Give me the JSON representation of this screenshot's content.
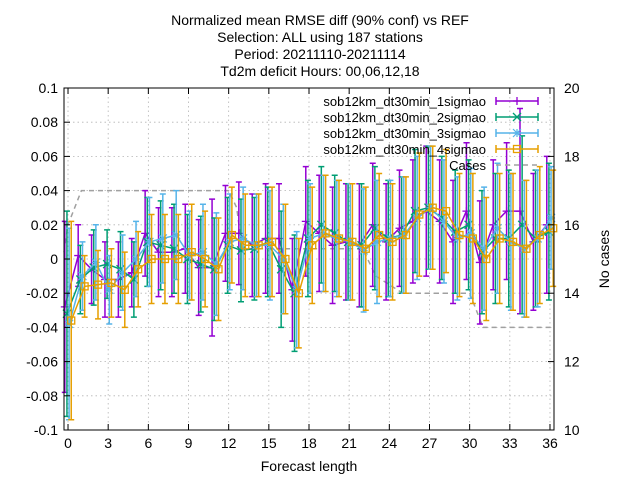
{
  "chart_data": {
    "type": "line",
    "title_lines": [
      "Normalized mean RMSE diff (90% conf) vs REF",
      "Selection: ALL using   187 stations",
      "Period: 20211110-20211114",
      "Td2m deficit   Hours: 00,06,12,18"
    ],
    "xlabel": "Forecast length",
    "ylabel_right": "No cases",
    "xlim": [
      -0.3,
      36.3
    ],
    "ylim": [
      -0.1,
      0.1
    ],
    "y2lim": [
      10,
      20
    ],
    "x_ticks": [
      "0",
      "3",
      "6",
      "9",
      "12",
      "15",
      "18",
      "21",
      "24",
      "27",
      "30",
      "33",
      "36"
    ],
    "y_ticks": [
      "-0.1",
      "-0.08",
      "-0.06",
      "-0.04",
      "-0.02",
      "0",
      "0.02",
      "0.04",
      "0.06",
      "0.08",
      "0.1"
    ],
    "y2_ticks": [
      "10",
      "12",
      "14",
      "16",
      "18",
      "20"
    ],
    "grid": true,
    "legend_position": "top-right",
    "x": [
      0,
      1,
      2,
      3,
      4,
      5,
      6,
      7,
      8,
      9,
      10,
      11,
      12,
      13,
      14,
      15,
      16,
      17,
      18,
      19,
      20,
      21,
      22,
      23,
      24,
      25,
      26,
      27,
      28,
      29,
      30,
      31,
      32,
      33,
      34,
      35,
      36
    ],
    "series": [
      {
        "name": "sob12km_dt30min_1sigmao",
        "color": "#9400d3",
        "marker": "plus",
        "y": [
          -0.028,
          0.002,
          -0.006,
          -0.012,
          -0.012,
          -0.008,
          0.015,
          0.004,
          0.004,
          0.006,
          -0.005,
          -0.005,
          0.015,
          0.015,
          0.008,
          0.012,
          0.012,
          -0.018,
          0.022,
          0.015,
          0.008,
          0.01,
          0.008,
          0.02,
          0.01,
          0.018,
          0.022,
          0.028,
          0.022,
          0.01,
          0.028,
          -0.002,
          0.02,
          0.028,
          0.028,
          0.01,
          0.02
        ],
        "err": [
          0.05,
          0.018,
          0.02,
          0.022,
          0.022,
          0.02,
          0.025,
          0.026,
          0.026,
          0.026,
          0.028,
          0.04,
          0.028,
          0.03,
          0.03,
          0.032,
          0.032,
          0.03,
          0.032,
          0.034,
          0.034,
          0.034,
          0.036,
          0.036,
          0.034,
          0.034,
          0.036,
          0.038,
          0.036,
          0.036,
          0.04,
          0.036,
          0.038,
          0.04,
          0.06,
          0.04,
          0.04
        ]
      },
      {
        "name": "sob12km_dt30min_2sigmao",
        "color": "#009e73",
        "marker": "cross",
        "y": [
          -0.032,
          -0.012,
          -0.005,
          -0.003,
          -0.006,
          -0.012,
          0.01,
          0.008,
          0.006,
          0.0,
          -0.003,
          -0.006,
          0.008,
          0.005,
          0.006,
          0.01,
          -0.006,
          -0.02,
          0.012,
          0.02,
          0.015,
          0.01,
          0.008,
          0.018,
          0.012,
          0.014,
          0.028,
          0.03,
          0.024,
          0.016,
          0.02,
          0.004,
          0.012,
          0.012,
          0.02,
          0.012,
          0.016
        ],
        "err": [
          0.06,
          0.02,
          0.022,
          0.02,
          0.022,
          0.022,
          0.026,
          0.026,
          0.026,
          0.026,
          0.028,
          0.03,
          0.028,
          0.03,
          0.03,
          0.032,
          0.034,
          0.034,
          0.034,
          0.034,
          0.034,
          0.034,
          0.036,
          0.036,
          0.034,
          0.034,
          0.036,
          0.036,
          0.036,
          0.036,
          0.038,
          0.036,
          0.038,
          0.04,
          0.052,
          0.04,
          0.04
        ]
      },
      {
        "name": "sob12km_dt30min_3sigmao",
        "color": "#56b4e9",
        "marker": "star",
        "y": [
          -0.038,
          -0.01,
          -0.002,
          -0.018,
          -0.008,
          0.0,
          0.01,
          0.012,
          0.014,
          0.002,
          0.004,
          -0.003,
          0.01,
          0.012,
          0.008,
          0.008,
          0.0,
          -0.018,
          0.012,
          0.015,
          0.012,
          0.01,
          0.005,
          0.01,
          0.012,
          0.014,
          0.024,
          0.03,
          0.022,
          0.012,
          0.015,
          0.006,
          0.018,
          0.01,
          0.006,
          0.012,
          0.024
        ],
        "err": [
          0.056,
          0.02,
          0.022,
          0.02,
          0.022,
          0.022,
          0.026,
          0.026,
          0.026,
          0.026,
          0.028,
          0.03,
          0.028,
          0.03,
          0.03,
          0.032,
          0.032,
          0.034,
          0.032,
          0.034,
          0.034,
          0.034,
          0.036,
          0.036,
          0.034,
          0.034,
          0.036,
          0.036,
          0.036,
          0.036,
          0.038,
          0.036,
          0.038,
          0.04,
          0.04,
          0.04,
          0.03
        ]
      },
      {
        "name": "sob12km_dt30min_4sigmao",
        "color": "#e69f00",
        "marker": "square",
        "y": [
          -0.036,
          -0.016,
          -0.015,
          -0.014,
          -0.018,
          -0.006,
          0.0,
          0.0,
          0.0,
          0.004,
          0.0,
          -0.006,
          0.014,
          0.008,
          0.008,
          0.01,
          0.0,
          -0.02,
          0.008,
          0.015,
          0.012,
          0.01,
          0.006,
          0.014,
          0.01,
          0.014,
          0.026,
          0.03,
          0.028,
          0.014,
          0.012,
          0.0,
          0.012,
          0.01,
          0.006,
          0.014,
          0.018
        ],
        "err": [
          0.058,
          0.018,
          0.02,
          0.02,
          0.022,
          0.022,
          0.026,
          0.026,
          0.026,
          0.028,
          0.028,
          0.03,
          0.028,
          0.03,
          0.03,
          0.032,
          0.032,
          0.032,
          0.034,
          0.034,
          0.034,
          0.034,
          0.036,
          0.036,
          0.034,
          0.034,
          0.036,
          0.036,
          0.036,
          0.036,
          0.038,
          0.036,
          0.038,
          0.04,
          0.04,
          0.04,
          0.034
        ]
      }
    ],
    "cases": {
      "name": "Cases",
      "color": "#a0a0a0",
      "style": "dashed",
      "axis": "right",
      "points": [
        [
          -0.3,
          15.2
        ],
        [
          0,
          16
        ],
        [
          1,
          17
        ],
        [
          12,
          17
        ],
        [
          12.6,
          16.5
        ],
        [
          13,
          15.3
        ],
        [
          22,
          15.3
        ],
        [
          23,
          14.5
        ],
        [
          25,
          14
        ],
        [
          30,
          14
        ],
        [
          31,
          13
        ],
        [
          36.3,
          13
        ]
      ]
    }
  }
}
